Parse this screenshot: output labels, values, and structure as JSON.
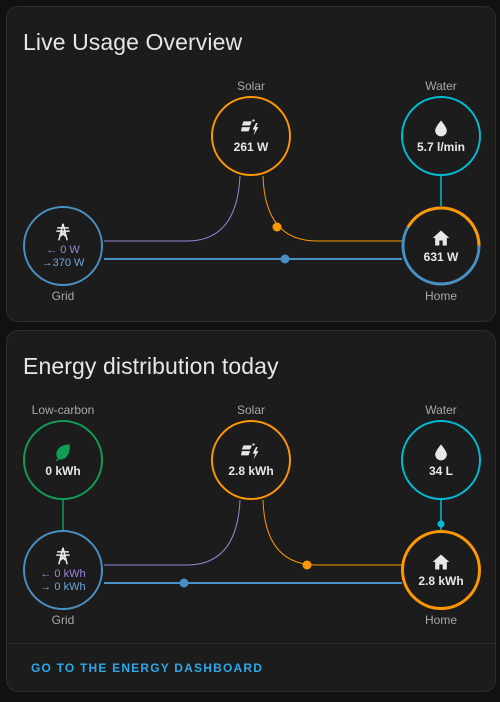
{
  "live": {
    "title": "Live Usage Overview",
    "solar": {
      "label": "Solar",
      "value": "261 W"
    },
    "water": {
      "label": "Water",
      "value": "5.7 l/min"
    },
    "grid": {
      "label": "Grid",
      "in": "← 0 W",
      "out": "→370 W"
    },
    "home": {
      "label": "Home",
      "value": "631 W"
    }
  },
  "today": {
    "title": "Energy distribution today",
    "lowcarbon": {
      "label": "Low-carbon",
      "value": "0 kWh"
    },
    "solar": {
      "label": "Solar",
      "value": "2.8 kWh"
    },
    "water": {
      "label": "Water",
      "value": "34 L"
    },
    "grid": {
      "label": "Grid",
      "in": "← 0 kWh",
      "out": "→ 0 kWh"
    },
    "home": {
      "label": "Home",
      "value": "2.8 kWh"
    },
    "footer_link": "GO TO THE ENERGY DASHBOARD"
  },
  "colors": {
    "solar": "#ff9800",
    "water": "#00bcd4",
    "grid": "#488fc2",
    "lowcarbon": "#0f9d58",
    "return": "#a084dc",
    "link": "#2ea7e8"
  },
  "icons": {
    "solar": "solar-power-icon",
    "water": "water-drop-icon",
    "grid": "transmission-tower-icon",
    "home": "home-icon",
    "lowcarbon": "leaf-icon"
  }
}
